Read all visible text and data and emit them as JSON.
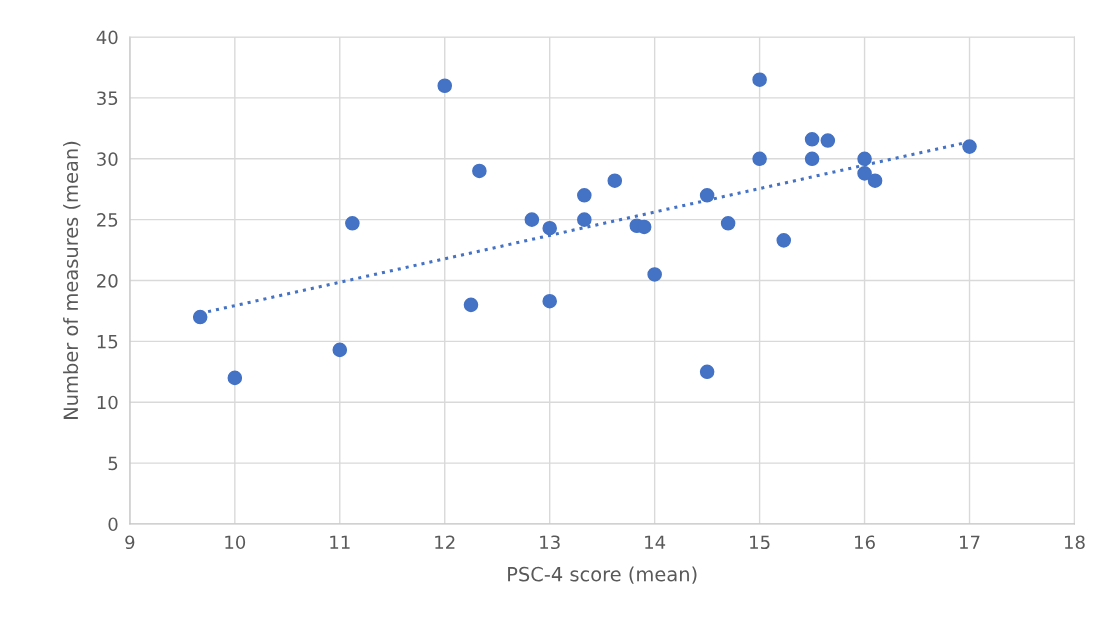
{
  "chart_data": {
    "type": "scatter",
    "xlabel": "PSC-4 score (mean)",
    "ylabel": "Number of measures (mean)",
    "xlim": [
      9,
      18
    ],
    "xticks": [
      9,
      10,
      11,
      12,
      13,
      14,
      15,
      16,
      17,
      18
    ],
    "ylim": [
      0,
      40
    ],
    "yticks": [
      0,
      5,
      10,
      15,
      20,
      25,
      30,
      35,
      40
    ],
    "grid": true,
    "legend": false,
    "series": [
      {
        "type": "scatter",
        "color": "#4472c4",
        "marker": "circle",
        "x": [
          9.67,
          10.0,
          11.0,
          11.12,
          12.0,
          12.25,
          12.33,
          12.83,
          13.0,
          13.0,
          13.33,
          13.33,
          13.62,
          13.83,
          13.9,
          14.0,
          14.5,
          14.5,
          14.7,
          15.0,
          15.0,
          15.23,
          15.5,
          15.5,
          15.65,
          16.0,
          16.0,
          16.1,
          17.0
        ],
        "values": [
          17.0,
          12.0,
          14.3,
          24.7,
          36.0,
          18.0,
          29.0,
          25.0,
          24.3,
          18.3,
          27.0,
          25.0,
          28.2,
          24.5,
          24.4,
          20.5,
          12.5,
          27.0,
          24.7,
          36.5,
          30.0,
          23.3,
          31.6,
          30.0,
          31.5,
          30.0,
          28.8,
          28.2,
          31.0
        ]
      },
      {
        "type": "line",
        "color": "#4472c4",
        "line_style": "dotted",
        "marker": "none",
        "x": [
          9.67,
          17.0
        ],
        "values": [
          17.3,
          31.4
        ]
      }
    ]
  }
}
